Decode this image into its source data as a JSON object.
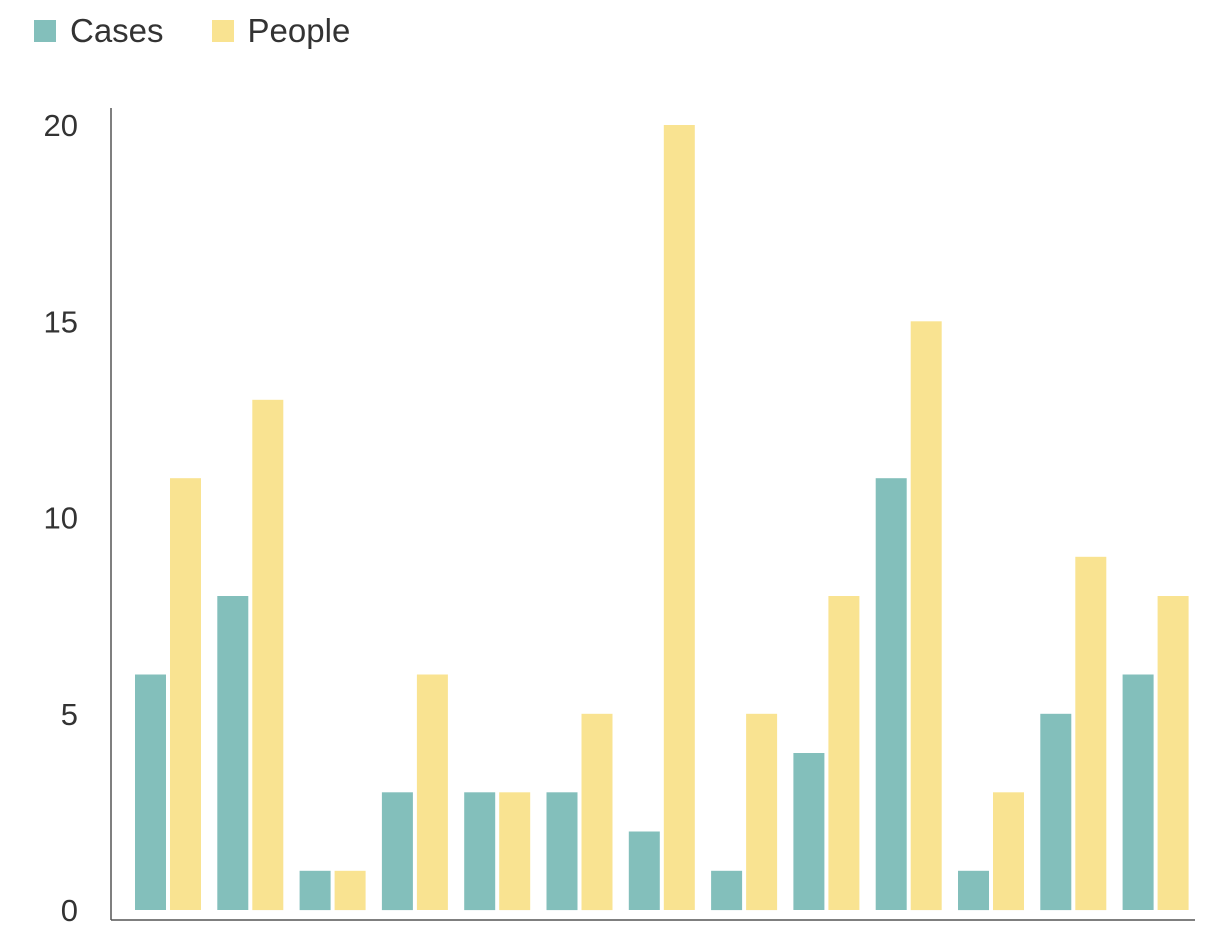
{
  "legend": [
    {
      "label": "Cases",
      "color": "#83bfbb"
    },
    {
      "label": "People",
      "color": "#f9e391"
    }
  ],
  "chart_data": {
    "type": "bar",
    "title": "",
    "xlabel": "",
    "ylabel": "",
    "ylim": [
      0,
      20
    ],
    "yticks": [
      0,
      5,
      10,
      15,
      20
    ],
    "grid": false,
    "legend_position": "top-left",
    "categories": [
      "",
      "",
      "",
      "",
      "",
      "",
      "",
      "",
      "",
      "",
      "",
      "",
      ""
    ],
    "series": [
      {
        "name": "Cases",
        "color": "#83bfbb",
        "values": [
          6,
          8,
          1,
          3,
          3,
          3,
          2,
          1,
          4,
          11,
          1,
          5,
          6
        ]
      },
      {
        "name": "People",
        "color": "#f9e391",
        "values": [
          11,
          13,
          1,
          6,
          3,
          5,
          20,
          5,
          8,
          15,
          3,
          9,
          8
        ]
      }
    ]
  }
}
